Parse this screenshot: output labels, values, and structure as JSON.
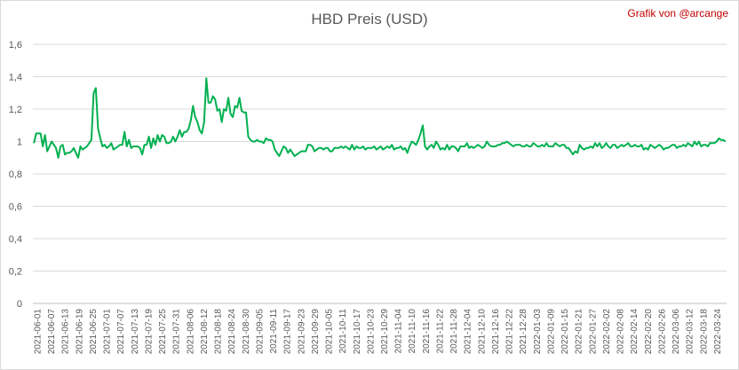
{
  "chart_data": {
    "type": "line",
    "title": "HBD Preis (USD)",
    "credit": "Grafik von @arcange",
    "xlabel": "",
    "ylabel": "",
    "ylim": [
      0,
      1.6
    ],
    "y_ticks": [
      "0",
      "0,2",
      "0,4",
      "0,6",
      "0,8",
      "1",
      "1,2",
      "1,4",
      "1,6"
    ],
    "grid": true,
    "line_color": "#00b050",
    "x_tick_labels": [
      "2021-06-01",
      "2021-06-07",
      "2021-06-13",
      "2021-06-19",
      "2021-06-25",
      "2021-07-01",
      "2021-07-07",
      "2021-07-13",
      "2021-07-19",
      "2021-07-25",
      "2021-07-31",
      "2021-08-06",
      "2021-08-12",
      "2021-08-18",
      "2021-08-24",
      "2021-08-30",
      "2021-09-05",
      "2021-09-11",
      "2021-09-17",
      "2021-09-23",
      "2021-09-29",
      "2021-10-05",
      "2021-10-11",
      "2021-10-17",
      "2021-10-23",
      "2021-10-29",
      "2021-11-04",
      "2021-11-10",
      "2021-11-16",
      "2021-11-22",
      "2021-11-28",
      "2021-12-04",
      "2021-12-10",
      "2021-12-16",
      "2021-12-22",
      "2021-12-28",
      "2022-01-03",
      "2022-01-09",
      "2022-01-15",
      "2022-01-21",
      "2022-01-27",
      "2022-02-02",
      "2022-02-08",
      "2022-02-14",
      "2022-02-20",
      "2022-02-26",
      "2022-03-06",
      "2022-03-12",
      "2022-03-18",
      "2022-03-24"
    ],
    "series": [
      {
        "values": [
          0.99,
          1.05,
          1.05,
          1.05,
          0.97,
          1.04,
          0.94,
          0.97,
          1.0,
          0.98,
          0.96,
          0.9,
          0.97,
          0.98,
          0.92,
          0.93,
          0.93,
          0.94,
          0.96,
          0.93,
          0.9,
          0.97,
          0.95,
          0.96,
          0.97,
          0.99,
          1.01,
          1.3,
          1.33,
          1.08,
          1.02,
          0.97,
          0.98,
          0.96,
          0.97,
          0.99,
          0.95,
          0.96,
          0.97,
          0.98,
          0.98,
          1.06,
          0.97,
          1.01,
          0.96,
          0.97,
          0.97,
          0.97,
          0.96,
          0.92,
          0.98,
          0.98,
          1.03,
          0.96,
          1.02,
          0.98,
          1.04,
          1.0,
          1.04,
          1.03,
          0.99,
          0.99,
          1.0,
          1.03,
          1.0,
          1.03,
          1.07,
          1.03,
          1.06,
          1.06,
          1.08,
          1.13,
          1.22,
          1.15,
          1.12,
          1.07,
          1.05,
          1.12,
          1.39,
          1.24,
          1.24,
          1.28,
          1.26,
          1.19,
          1.2,
          1.12,
          1.2,
          1.19,
          1.27,
          1.17,
          1.15,
          1.22,
          1.21,
          1.27,
          1.19,
          1.18,
          1.18,
          1.03,
          1.01,
          1.0,
          1.0,
          1.01,
          1.0,
          1.0,
          0.99,
          1.02,
          1.01,
          1.01,
          1.0,
          0.95,
          0.93,
          0.91,
          0.94,
          0.97,
          0.96,
          0.93,
          0.95,
          0.93,
          0.91,
          0.92,
          0.93,
          0.94,
          0.94,
          0.94,
          0.98,
          0.98,
          0.97,
          0.94,
          0.95,
          0.96,
          0.96,
          0.95,
          0.96,
          0.96,
          0.94,
          0.94,
          0.96,
          0.96,
          0.96,
          0.97,
          0.96,
          0.97,
          0.96,
          0.95,
          0.98,
          0.95,
          0.97,
          0.96,
          0.96,
          0.97,
          0.95,
          0.96,
          0.96,
          0.96,
          0.97,
          0.95,
          0.96,
          0.97,
          0.95,
          0.96,
          0.97,
          0.96,
          0.98,
          0.95,
          0.96,
          0.96,
          0.97,
          0.95,
          0.96,
          0.93,
          0.97,
          1.0,
          0.99,
          0.98,
          1.01,
          1.05,
          1.1,
          0.97,
          0.95,
          0.97,
          0.98,
          0.96,
          1.0,
          0.98,
          0.95,
          0.96,
          0.95,
          0.98,
          0.95,
          0.97,
          0.97,
          0.96,
          0.94,
          0.97,
          0.97,
          0.97,
          0.99,
          0.96,
          0.97,
          0.96,
          0.97,
          0.98,
          0.97,
          0.96,
          0.97,
          1.0,
          0.98,
          0.97,
          0.97,
          0.97,
          0.98,
          0.98,
          0.99,
          0.99,
          1.0,
          0.99,
          0.98,
          0.97,
          0.98,
          0.98,
          0.98,
          0.97,
          0.97,
          0.98,
          0.97,
          0.97,
          0.99,
          0.98,
          0.97,
          0.97,
          0.98,
          0.97,
          0.99,
          0.97,
          0.97,
          0.97,
          0.99,
          0.98,
          0.97,
          0.98,
          0.98,
          0.96,
          0.96,
          0.94,
          0.92,
          0.94,
          0.93,
          0.98,
          0.96,
          0.95,
          0.96,
          0.96,
          0.97,
          0.96,
          0.99,
          0.97,
          0.99,
          0.96,
          0.97,
          0.99,
          0.97,
          0.96,
          0.98,
          0.98,
          0.96,
          0.97,
          0.98,
          0.97,
          0.98,
          0.99,
          0.97,
          0.97,
          0.98,
          0.97,
          0.97,
          0.98,
          0.95,
          0.96,
          0.95,
          0.98,
          0.97,
          0.96,
          0.97,
          0.98,
          0.97,
          0.95,
          0.96,
          0.96,
          0.97,
          0.98,
          0.98,
          0.96,
          0.97,
          0.97,
          0.98,
          0.97,
          0.99,
          0.98,
          0.97,
          1.0,
          0.98,
          1.0,
          0.97,
          0.98,
          0.98,
          0.97,
          0.99,
          0.99,
          0.99,
          1.0,
          1.02,
          1.01,
          1.01,
          1.0
        ]
      }
    ]
  }
}
